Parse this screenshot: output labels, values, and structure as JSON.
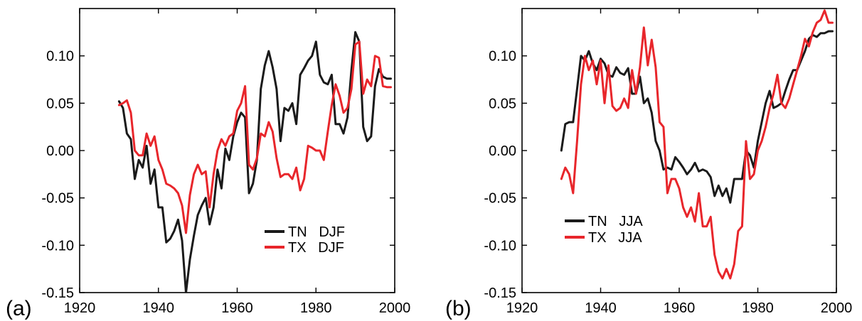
{
  "colors": {
    "tn": "#1a1a1a",
    "tx": "#e8262b"
  },
  "chart_data": [
    {
      "type": "line",
      "panel_label": "(a)",
      "xlim": [
        1920,
        2000
      ],
      "ylim": [
        -0.15,
        0.15
      ],
      "x_ticks": [
        1920,
        1940,
        1960,
        1980,
        2000
      ],
      "y_ticks": [
        -0.15,
        -0.1,
        -0.05,
        0.0,
        0.05,
        0.1
      ],
      "x_tick_labels": [
        "1920",
        "1940",
        "1960",
        "1980",
        "2000"
      ],
      "y_tick_labels": [
        "-0.15",
        "-0.10",
        "-0.05",
        "0.00",
        "0.05",
        "0.10"
      ],
      "legend_position": "bottom-right",
      "x": [
        1930,
        1931,
        1932,
        1933,
        1934,
        1935,
        1936,
        1937,
        1938,
        1939,
        1940,
        1941,
        1942,
        1943,
        1944,
        1945,
        1946,
        1947,
        1948,
        1949,
        1950,
        1951,
        1952,
        1953,
        1954,
        1955,
        1956,
        1957,
        1958,
        1959,
        1960,
        1961,
        1962,
        1963,
        1964,
        1965,
        1966,
        1967,
        1968,
        1969,
        1970,
        1971,
        1972,
        1973,
        1974,
        1975,
        1976,
        1977,
        1978,
        1979,
        1980,
        1981,
        1982,
        1983,
        1984,
        1985,
        1986,
        1987,
        1988,
        1989,
        1990,
        1991,
        1992,
        1993,
        1994,
        1995,
        1996,
        1997,
        1998,
        1999
      ],
      "series": [
        {
          "name": "TN   DJF",
          "color_key": "tn",
          "values": [
            0.052,
            0.045,
            0.018,
            0.012,
            -0.03,
            -0.01,
            -0.018,
            0.005,
            -0.035,
            -0.02,
            -0.06,
            -0.06,
            -0.097,
            -0.093,
            -0.085,
            -0.073,
            -0.095,
            -0.15,
            -0.115,
            -0.09,
            -0.068,
            -0.058,
            -0.05,
            -0.078,
            -0.06,
            -0.02,
            -0.04,
            0.002,
            -0.01,
            0.015,
            0.03,
            0.04,
            0.035,
            -0.045,
            -0.035,
            -0.01,
            0.065,
            0.09,
            0.105,
            0.088,
            0.065,
            0.01,
            0.045,
            0.042,
            0.05,
            0.028,
            0.08,
            0.087,
            0.095,
            0.1,
            0.115,
            0.08,
            0.072,
            0.07,
            0.08,
            0.028,
            0.028,
            0.018,
            0.035,
            0.085,
            0.125,
            0.115,
            0.025,
            0.01,
            0.015,
            0.068,
            0.086,
            0.078,
            0.076,
            0.076
          ]
        },
        {
          "name": "TX   DJF",
          "color_key": "tx",
          "values": [
            0.048,
            0.05,
            0.053,
            0.04,
            0.0,
            -0.005,
            -0.005,
            0.018,
            0.005,
            0.015,
            -0.01,
            -0.02,
            -0.035,
            -0.037,
            -0.04,
            -0.045,
            -0.058,
            -0.087,
            -0.047,
            -0.025,
            -0.015,
            -0.025,
            -0.022,
            -0.06,
            -0.025,
            0.0,
            0.012,
            0.005,
            0.015,
            0.018,
            0.042,
            0.05,
            0.068,
            -0.015,
            -0.02,
            -0.008,
            0.018,
            0.015,
            0.03,
            0.02,
            -0.008,
            -0.028,
            -0.025,
            -0.025,
            -0.03,
            -0.018,
            -0.042,
            -0.03,
            0.005,
            0.003,
            0.0,
            0.0,
            -0.01,
            0.02,
            0.048,
            0.07,
            0.058,
            0.04,
            0.045,
            0.065,
            0.112,
            0.115,
            0.06,
            0.075,
            0.068,
            0.1,
            0.098,
            0.068,
            0.067,
            0.067
          ]
        }
      ]
    },
    {
      "type": "line",
      "panel_label": "(b)",
      "xlim": [
        1920,
        2000
      ],
      "ylim": [
        -0.15,
        0.15
      ],
      "x_ticks": [
        1920,
        1940,
        1960,
        1980,
        2000
      ],
      "y_ticks": [
        -0.15,
        -0.1,
        -0.05,
        0.0,
        0.05,
        0.1
      ],
      "x_tick_labels": [
        "1920",
        "1940",
        "1960",
        "1980",
        "2000"
      ],
      "y_tick_labels": [
        "-0.15",
        "-0.10",
        "-0.05",
        "0.00",
        "0.05",
        "0.10"
      ],
      "legend_position": "bottom-left",
      "x": [
        1930,
        1931,
        1932,
        1933,
        1934,
        1935,
        1936,
        1937,
        1938,
        1939,
        1940,
        1941,
        1942,
        1943,
        1944,
        1945,
        1946,
        1947,
        1948,
        1949,
        1950,
        1951,
        1952,
        1953,
        1954,
        1955,
        1956,
        1957,
        1958,
        1959,
        1960,
        1961,
        1962,
        1963,
        1964,
        1965,
        1966,
        1967,
        1968,
        1969,
        1970,
        1971,
        1972,
        1973,
        1974,
        1975,
        1976,
        1977,
        1978,
        1979,
        1980,
        1981,
        1982,
        1983,
        1984,
        1985,
        1986,
        1987,
        1988,
        1989,
        1990,
        1991,
        1992,
        1993,
        1994,
        1995,
        1996,
        1997,
        1998,
        1999
      ],
      "series": [
        {
          "name": "TN   JJA",
          "color_key": "tn",
          "values": [
            0.0,
            0.028,
            0.03,
            0.03,
            0.065,
            0.1,
            0.095,
            0.105,
            0.092,
            0.085,
            0.097,
            0.092,
            0.08,
            0.078,
            0.088,
            0.082,
            0.08,
            0.087,
            0.06,
            0.06,
            0.078,
            0.05,
            0.055,
            0.04,
            0.01,
            0.0,
            -0.02,
            -0.018,
            -0.02,
            -0.007,
            -0.012,
            -0.018,
            -0.025,
            -0.02,
            -0.013,
            -0.022,
            -0.02,
            -0.022,
            -0.028,
            -0.048,
            -0.037,
            -0.048,
            -0.04,
            -0.055,
            -0.03,
            -0.03,
            -0.03,
            0.0,
            -0.005,
            -0.018,
            0.01,
            0.03,
            0.05,
            0.063,
            0.045,
            0.047,
            0.05,
            0.063,
            0.075,
            0.085,
            0.085,
            0.095,
            0.105,
            0.118,
            0.122,
            0.12,
            0.124,
            0.124,
            0.126,
            0.126
          ]
        },
        {
          "name": "TX   JJA",
          "color_key": "tx",
          "values": [
            -0.03,
            -0.018,
            -0.025,
            -0.045,
            0.01,
            0.07,
            0.1,
            0.085,
            0.095,
            0.07,
            0.095,
            0.05,
            0.09,
            0.047,
            0.042,
            0.045,
            0.055,
            0.045,
            0.085,
            0.06,
            0.088,
            0.13,
            0.09,
            0.117,
            0.088,
            0.03,
            0.025,
            -0.045,
            -0.03,
            -0.03,
            -0.04,
            -0.06,
            -0.07,
            -0.06,
            -0.075,
            -0.045,
            -0.08,
            -0.08,
            -0.07,
            -0.11,
            -0.128,
            -0.135,
            -0.125,
            -0.135,
            -0.12,
            -0.085,
            -0.08,
            0.01,
            -0.03,
            -0.025,
            0.0,
            0.01,
            0.025,
            0.045,
            0.06,
            0.08,
            0.05,
            0.045,
            0.055,
            0.07,
            0.085,
            0.1,
            0.118,
            0.11,
            0.125,
            0.135,
            0.138,
            0.148,
            0.135,
            0.135
          ]
        }
      ]
    }
  ]
}
